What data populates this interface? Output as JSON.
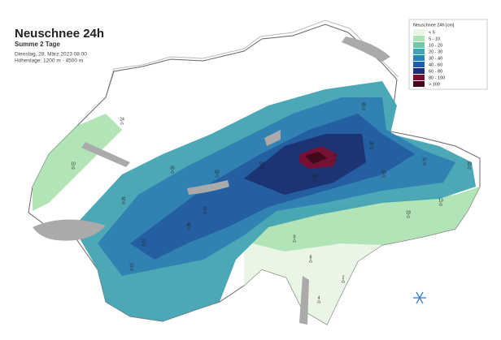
{
  "header": {
    "title": "Neuschnee 24h",
    "subtitle": "Summe 2 Tage",
    "date": "Dienstag, 28. März 2023 08:00",
    "elevation": "Höhenlage: 1200 m - 4500 m"
  },
  "legend": {
    "title": "Neuschnee 24h [cm]",
    "items": [
      {
        "label": "< 5",
        "color": "#e8f6e4"
      },
      {
        "label": "5 - 10",
        "color": "#aee3b4"
      },
      {
        "label": "10 - 20",
        "color": "#72c7a8"
      },
      {
        "label": "20 - 30",
        "color": "#42a3b2"
      },
      {
        "label": "30 - 40",
        "color": "#2f80b2"
      },
      {
        "label": "40 - 60",
        "color": "#245da0"
      },
      {
        "label": "60 - 80",
        "color": "#1c3171"
      },
      {
        "label": "80 - 100",
        "color": "#7b0f30"
      },
      {
        "label": "> 100",
        "color": "#3e0a1c"
      }
    ]
  },
  "stations": [
    "24",
    "10",
    "41",
    "27",
    "35",
    "62",
    "54",
    "68",
    "90",
    "66",
    "47",
    "31",
    "18",
    "8",
    "4",
    "2",
    "33",
    "45",
    "22",
    "51",
    "28",
    "13",
    "0"
  ]
}
